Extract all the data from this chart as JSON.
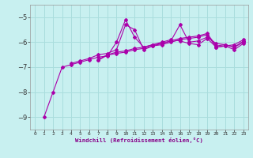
{
  "xlabel": "Windchill (Refroidissement éolien,°C)",
  "bg_color": "#c8f0f0",
  "line_color": "#aa00aa",
  "grid_color": "#aadddd",
  "xlim": [
    -0.5,
    23.5
  ],
  "ylim": [
    -9.5,
    -4.5
  ],
  "yticks": [
    -9,
    -8,
    -7,
    -6,
    -5
  ],
  "xticks": [
    0,
    1,
    2,
    3,
    4,
    5,
    6,
    7,
    8,
    9,
    10,
    11,
    12,
    13,
    14,
    15,
    16,
    17,
    18,
    19,
    20,
    21,
    22,
    23
  ],
  "series": [
    [
      1,
      -9.0,
      2,
      -8.0,
      3,
      -7.0,
      4,
      -6.9,
      5,
      -6.8,
      6,
      -6.7,
      7,
      -6.6,
      8,
      -6.55,
      9,
      -6.0,
      10,
      -5.1,
      11,
      -5.8,
      12,
      -6.2,
      13,
      -6.1,
      14,
      -6.0,
      15,
      -5.9,
      16,
      -5.95,
      17,
      -6.05,
      18,
      -6.1,
      19,
      -5.85,
      20,
      -6.2,
      21,
      -6.15,
      22,
      -6.1,
      23,
      -5.9
    ],
    [
      4,
      -6.85,
      5,
      -6.75,
      6,
      -6.65,
      7,
      -6.5,
      8,
      -6.45,
      9,
      -6.3,
      10,
      -5.3,
      11,
      -5.5,
      12,
      -6.3,
      13,
      -6.15,
      14,
      -6.05,
      15,
      -5.95,
      16,
      -5.3,
      17,
      -6.0,
      18,
      -5.95,
      19,
      -5.8,
      20,
      -6.05,
      21,
      -6.1,
      22,
      -6.2,
      23,
      -5.95
    ],
    [
      7,
      -6.7,
      8,
      -6.5,
      9,
      -6.4,
      10,
      -6.35,
      11,
      -6.25,
      12,
      -6.2,
      13,
      -6.1,
      14,
      -6.05,
      15,
      -5.95,
      16,
      -5.85,
      17,
      -5.8,
      18,
      -5.75,
      19,
      -5.65,
      20,
      -6.15,
      21,
      -6.1,
      22,
      -6.2,
      23,
      -6.0
    ],
    [
      7,
      -6.72,
      8,
      -6.52,
      9,
      -6.45,
      10,
      -6.4,
      11,
      -6.3,
      12,
      -6.25,
      13,
      -6.15,
      14,
      -6.1,
      15,
      -6.0,
      16,
      -5.9,
      17,
      -5.85,
      18,
      -5.8,
      19,
      -5.7,
      20,
      -6.2,
      21,
      -6.15,
      22,
      -6.3,
      23,
      -6.05
    ]
  ]
}
